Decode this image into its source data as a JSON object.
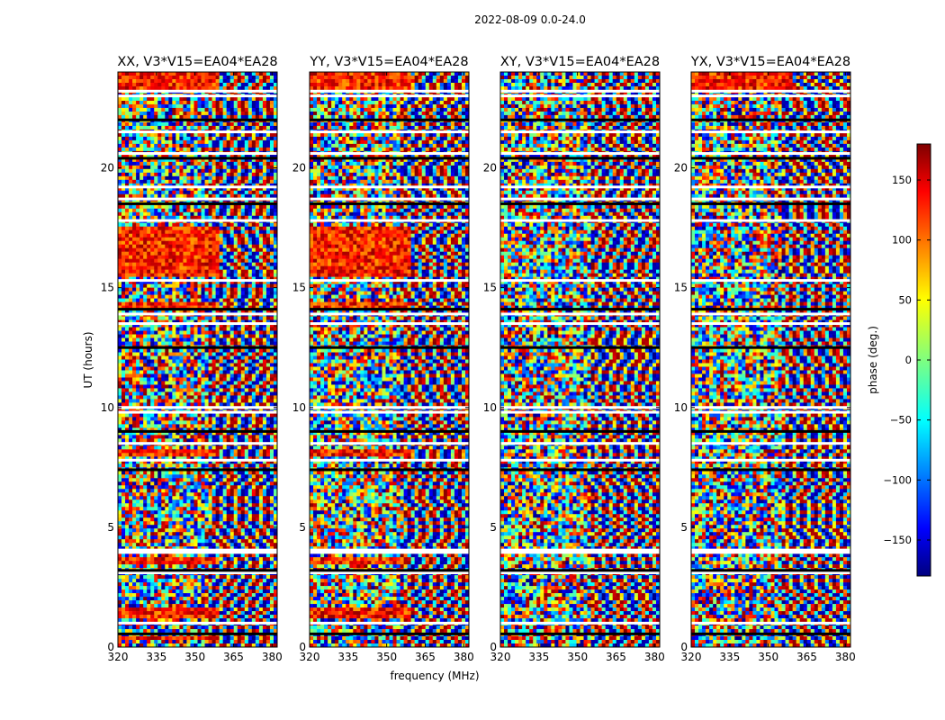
{
  "chart_data": {
    "type": "heatmap",
    "suptitle": "2022-08-09 0.0-24.0",
    "xlabel": "frequency (MHz)",
    "ylabel": "UT (hours)",
    "xlim": [
      320,
      382
    ],
    "ylim": [
      0,
      24
    ],
    "xticks": [
      "320",
      "335",
      "350",
      "365",
      "380"
    ],
    "yticks": [
      "0",
      "5",
      "10",
      "15",
      "20"
    ],
    "panels": [
      {
        "title": "XX, V3*V15=EA04*EA28",
        "warm_bands": [
          [
            0.3,
            0.5
          ],
          [
            1.2,
            1.6
          ],
          [
            3.4,
            3.8
          ],
          [
            7.9,
            8.3
          ],
          [
            14.1,
            14.4
          ],
          [
            15.5,
            17.5
          ],
          [
            23.3,
            24.0
          ]
        ]
      },
      {
        "title": "YY, V3*V15=EA04*EA28",
        "warm_bands": [
          [
            1.2,
            1.6
          ],
          [
            3.4,
            3.8
          ],
          [
            7.9,
            8.3
          ],
          [
            14.1,
            14.4
          ],
          [
            15.5,
            17.5
          ],
          [
            23.3,
            24.0
          ]
        ]
      },
      {
        "title": "XY, V3*V15=EA04*EA28",
        "warm_bands": []
      },
      {
        "title": "YX, V3*V15=EA04*EA28",
        "warm_bands": [
          [
            23.3,
            24.0
          ]
        ]
      }
    ],
    "gaps_hours": [
      0.55,
      1.0,
      3.1,
      3.2,
      3.95,
      4.05,
      7.4,
      7.8,
      8.5,
      9.0,
      9.8,
      10.0,
      12.5,
      13.5,
      13.9,
      14.1,
      15.3,
      17.8,
      18.5,
      18.7,
      19.2,
      20.4,
      20.6,
      21.5,
      22.0,
      23.0,
      23.2
    ],
    "colorbar": {
      "label": "phase (deg.)",
      "range": [
        -180,
        180
      ],
      "ticks": [
        "150",
        "100",
        "50",
        "0",
        "−50",
        "−100",
        "−150"
      ],
      "tick_values": [
        150,
        100,
        50,
        0,
        -50,
        -100,
        -150
      ],
      "colormap": "jet",
      "colors": [
        "#00007f",
        "#0000ff",
        "#007fff",
        "#00ffff",
        "#7fff7f",
        "#ffff00",
        "#ff7f00",
        "#ff0000",
        "#7f0000"
      ]
    }
  }
}
